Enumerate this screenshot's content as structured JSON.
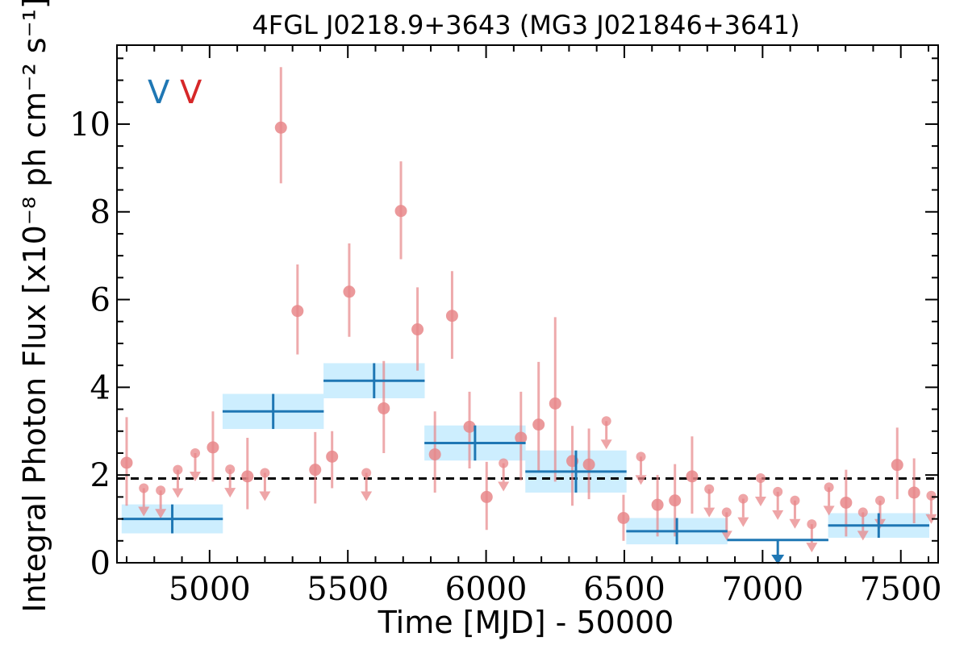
{
  "chart_data": {
    "type": "scatter",
    "title": "4FGL J0218.9+3643 (MG3 J021846+3641)",
    "xlabel": "Time [MJD] - 50000",
    "ylabel": "Integral Photon Flux [x10⁻⁸ ph cm⁻² s⁻¹]",
    "xlim": [
      4665,
      7635
    ],
    "ylim": [
      0,
      11.8
    ],
    "x_ticks": [
      5000,
      5500,
      6000,
      6500,
      7000,
      7500
    ],
    "y_ticks": [
      0,
      2,
      4,
      6,
      8,
      10
    ],
    "reference_line": 1.92,
    "legend": {
      "placement": "top-left",
      "entries": [
        {
          "text": "V",
          "color": "#1f77b4"
        },
        {
          "text": "V",
          "color": "#d62728"
        }
      ]
    },
    "colors": {
      "binned": "#1f77b4",
      "binned_band": "#cdeefe",
      "fine": "#e8878a",
      "reference": "#000000"
    },
    "series": [
      {
        "points": [
          {
            "x": 4865,
            "y": 1.0,
            "xerr": 183,
            "yerr": 0.33
          },
          {
            "x": 5230,
            "y": 3.45,
            "xerr": 183,
            "yerr": 0.4
          },
          {
            "x": 5595,
            "y": 4.15,
            "xerr": 183,
            "yerr": 0.4
          },
          {
            "x": 5960,
            "y": 2.73,
            "xerr": 183,
            "yerr": 0.4
          },
          {
            "x": 6325,
            "y": 2.08,
            "xerr": 183,
            "yerr": 0.48
          },
          {
            "x": 6690,
            "y": 0.72,
            "xerr": 183,
            "yerr": 0.3
          },
          {
            "x": 7055,
            "y": 0.52,
            "xerr": 183,
            "yerr": 0.0,
            "upper_limit": true
          },
          {
            "x": 7420,
            "y": 0.85,
            "xerr": 183,
            "yerr": 0.28
          }
        ]
      },
      {
        "points": [
          {
            "x": 4700,
            "y": 2.28,
            "ylo": 1.3,
            "yhi": 3.32
          },
          {
            "x": 4762,
            "y": 1.7,
            "upper_limit": true
          },
          {
            "x": 4823,
            "y": 1.65,
            "upper_limit": true
          },
          {
            "x": 4885,
            "y": 2.12,
            "upper_limit": true
          },
          {
            "x": 4948,
            "y": 2.5,
            "upper_limit": true
          },
          {
            "x": 5012,
            "y": 2.63,
            "ylo": 1.85,
            "yhi": 3.45
          },
          {
            "x": 5074,
            "y": 2.13,
            "upper_limit": true
          },
          {
            "x": 5137,
            "y": 1.97,
            "ylo": 1.22,
            "yhi": 2.85
          },
          {
            "x": 5200,
            "y": 2.05,
            "upper_limit": true
          },
          {
            "x": 5258,
            "y": 9.92,
            "ylo": 8.65,
            "yhi": 11.3
          },
          {
            "x": 5318,
            "y": 5.74,
            "ylo": 4.75,
            "yhi": 6.8
          },
          {
            "x": 5382,
            "y": 2.12,
            "ylo": 1.35,
            "yhi": 2.98
          },
          {
            "x": 5443,
            "y": 2.42,
            "ylo": 1.7,
            "yhi": 3.0
          },
          {
            "x": 5505,
            "y": 6.18,
            "ylo": 5.15,
            "yhi": 7.28
          },
          {
            "x": 5567,
            "y": 2.05,
            "upper_limit": true
          },
          {
            "x": 5630,
            "y": 3.52,
            "ylo": 2.5,
            "yhi": 4.6
          },
          {
            "x": 5692,
            "y": 8.02,
            "ylo": 6.92,
            "yhi": 9.15
          },
          {
            "x": 5752,
            "y": 5.32,
            "ylo": 4.38,
            "yhi": 6.28
          },
          {
            "x": 5815,
            "y": 2.47,
            "ylo": 1.6,
            "yhi": 3.45
          },
          {
            "x": 5877,
            "y": 5.63,
            "ylo": 4.65,
            "yhi": 6.65
          },
          {
            "x": 5940,
            "y": 3.1,
            "ylo": 2.15,
            "yhi": 3.9
          },
          {
            "x": 6002,
            "y": 1.5,
            "ylo": 0.75,
            "yhi": 2.3
          },
          {
            "x": 6063,
            "y": 2.27,
            "upper_limit": true
          },
          {
            "x": 6126,
            "y": 2.85,
            "ylo": 1.88,
            "yhi": 3.9
          },
          {
            "x": 6190,
            "y": 3.15,
            "ylo": 2.1,
            "yhi": 4.58
          },
          {
            "x": 6250,
            "y": 3.63,
            "ylo": 1.85,
            "yhi": 5.6
          },
          {
            "x": 6312,
            "y": 2.32,
            "ylo": 1.3,
            "yhi": 3.12
          },
          {
            "x": 6372,
            "y": 2.24,
            "ylo": 1.45,
            "yhi": 3.06
          },
          {
            "x": 6435,
            "y": 3.23,
            "upper_limit": true
          },
          {
            "x": 6497,
            "y": 1.02,
            "ylo": 0.5,
            "yhi": 1.55
          },
          {
            "x": 6560,
            "y": 2.42,
            "upper_limit": true
          },
          {
            "x": 6620,
            "y": 1.32,
            "ylo": 0.6,
            "yhi": 2.0
          },
          {
            "x": 6683,
            "y": 1.42,
            "ylo": 0.6,
            "yhi": 2.25
          },
          {
            "x": 6745,
            "y": 1.97,
            "ylo": 1.12,
            "yhi": 2.88
          },
          {
            "x": 6807,
            "y": 1.68,
            "upper_limit": true
          },
          {
            "x": 6870,
            "y": 1.15,
            "upper_limit": true
          },
          {
            "x": 6930,
            "y": 1.46,
            "upper_limit": true
          },
          {
            "x": 6993,
            "y": 1.93,
            "upper_limit": true
          },
          {
            "x": 7055,
            "y": 1.62,
            "upper_limit": true
          },
          {
            "x": 7117,
            "y": 1.42,
            "upper_limit": true
          },
          {
            "x": 7178,
            "y": 0.88,
            "upper_limit": true
          },
          {
            "x": 7240,
            "y": 1.72,
            "upper_limit": true
          },
          {
            "x": 7302,
            "y": 1.37,
            "ylo": 0.6,
            "yhi": 2.12
          },
          {
            "x": 7363,
            "y": 1.15,
            "upper_limit": true
          },
          {
            "x": 7425,
            "y": 1.42,
            "upper_limit": true
          },
          {
            "x": 7487,
            "y": 2.23,
            "ylo": 1.45,
            "yhi": 3.08
          },
          {
            "x": 7548,
            "y": 1.6,
            "ylo": 0.9,
            "yhi": 2.38
          },
          {
            "x": 7610,
            "y": 1.53,
            "upper_limit": true
          }
        ]
      }
    ]
  }
}
